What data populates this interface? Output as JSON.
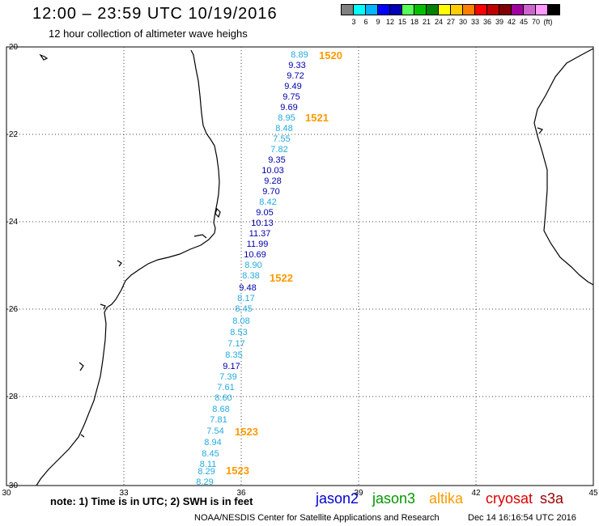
{
  "header": {
    "title": "12:00 – 23:59 UTC 10/19/2016",
    "subtitle": "12 hour collection of altimeter wave heighs"
  },
  "color_scale": {
    "colors": [
      "#808080",
      "#00ffff",
      "#00b4ff",
      "#0000ff",
      "#0000b4",
      "#55ff55",
      "#00c000",
      "#008000",
      "#ffff00",
      "#ffcc00",
      "#ff8000",
      "#ff0000",
      "#c00000",
      "#800000",
      "#a000a0",
      "#cc66cc",
      "#ff99ff",
      "#000000"
    ],
    "labels": [
      "3",
      "6",
      "9",
      "12",
      "15",
      "18",
      "21",
      "24",
      "27",
      "30",
      "33",
      "36",
      "39",
      "42",
      "45",
      "70",
      "(ft)"
    ]
  },
  "map": {
    "lat_labels": [
      "-20",
      "-22",
      "-24",
      "-26",
      "-28",
      "-30"
    ],
    "lon_labels": [
      "30",
      "33",
      "36",
      "39",
      "42",
      "45"
    ],
    "measurements": [
      {
        "value": "8.89",
        "color": "#22aadd"
      },
      {
        "value": "9.33",
        "color": "#0000aa"
      },
      {
        "value": "9.72",
        "color": "#0000aa"
      },
      {
        "value": "9.49",
        "color": "#0000aa"
      },
      {
        "value": "9.75",
        "color": "#0000aa"
      },
      {
        "value": "9.69",
        "color": "#0000aa"
      },
      {
        "value": "8.95",
        "color": "#22aadd"
      },
      {
        "value": "8.48",
        "color": "#22aadd"
      },
      {
        "value": "7.55",
        "color": "#22aadd"
      },
      {
        "value": "7.82",
        "color": "#22aadd"
      },
      {
        "value": "9.35",
        "color": "#0000aa"
      },
      {
        "value": "10.03",
        "color": "#0000aa"
      },
      {
        "value": "9.28",
        "color": "#0000aa"
      },
      {
        "value": "9.70",
        "color": "#0000aa"
      },
      {
        "value": "8.42",
        "color": "#22aadd"
      },
      {
        "value": "9.05",
        "color": "#0000aa"
      },
      {
        "value": "10.13",
        "color": "#0000aa"
      },
      {
        "value": "11.37",
        "color": "#0000aa"
      },
      {
        "value": "11.99",
        "color": "#0000aa"
      },
      {
        "value": "10.69",
        "color": "#0000aa"
      },
      {
        "value": "8.90",
        "color": "#22aadd"
      },
      {
        "value": "8.38",
        "color": "#22aadd"
      },
      {
        "value": "9.48",
        "color": "#0000aa"
      },
      {
        "value": "8.17",
        "color": "#22aadd"
      },
      {
        "value": "8.45",
        "color": "#22aadd"
      },
      {
        "value": "8.08",
        "color": "#22aadd"
      },
      {
        "value": "8.53",
        "color": "#22aadd"
      },
      {
        "value": "7.17",
        "color": "#22aadd"
      },
      {
        "value": "8.35",
        "color": "#22aadd"
      },
      {
        "value": "9.17",
        "color": "#0000aa"
      },
      {
        "value": "7.39",
        "color": "#22aadd"
      },
      {
        "value": "7.61",
        "color": "#22aadd"
      },
      {
        "value": "8.60",
        "color": "#22aadd"
      },
      {
        "value": "8.68",
        "color": "#22aadd"
      },
      {
        "value": "7.81",
        "color": "#22aadd"
      },
      {
        "value": "7.54",
        "color": "#22aadd"
      },
      {
        "value": "8.94",
        "color": "#22aadd"
      },
      {
        "value": "8.45",
        "color": "#22aadd"
      },
      {
        "value": "8.11",
        "color": "#22aadd"
      },
      {
        "value": "8.29",
        "color": "#22aadd"
      },
      {
        "value": "8.29",
        "color": "#22aadd"
      }
    ],
    "pass_labels": [
      "1520",
      "1521",
      "1522",
      "1523",
      "1523"
    ]
  },
  "footer": {
    "note": "note: 1) Time is in UTC; 2) SWH is in feet",
    "credit": "NOAA/NESDIS Center for Satellite Applications and Research",
    "timestamp": "Dec 14 16:16:54 UTC 2016"
  },
  "legend": [
    {
      "label": "jason2",
      "color": "#0000cc"
    },
    {
      "label": "jason3",
      "color": "#009900"
    },
    {
      "label": "altika",
      "color": "#ff9900"
    },
    {
      "label": "cryosat",
      "color": "#dd0000"
    },
    {
      "label": "s3a",
      "color": "#990000"
    }
  ]
}
